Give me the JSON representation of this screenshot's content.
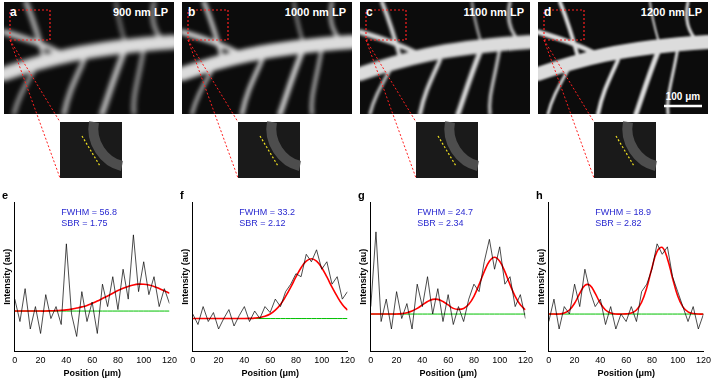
{
  "image_panels": [
    {
      "label": "a",
      "filter": "900 nm LP"
    },
    {
      "label": "b",
      "filter": "1000 nm LP"
    },
    {
      "label": "c",
      "filter": "1100 nm LP"
    },
    {
      "label": "d",
      "filter": "1200 nm LP",
      "scale_bar": "100 μm"
    }
  ],
  "chart_data": [
    {
      "type": "line",
      "label": "e",
      "annotations": [
        "FWHM = 56.8",
        "SBR = 1.75"
      ],
      "x_label": "Position (μm)",
      "y_label": "Intensity (au)",
      "x": [
        0,
        4,
        8,
        12,
        16,
        20,
        24,
        28,
        32,
        36,
        40,
        44,
        48,
        52,
        56,
        60,
        64,
        68,
        72,
        76,
        80,
        84,
        88,
        92,
        96,
        100,
        104,
        108,
        112,
        116,
        120
      ],
      "xlim": [
        0,
        120
      ],
      "xticks": [
        0,
        20,
        40,
        60,
        80,
        100,
        120
      ],
      "ylim": [
        0,
        1
      ],
      "tick_labels": "x",
      "grid": false,
      "series": [
        {
          "color": "#000000",
          "values": [
            0.35,
            0.2,
            0.42,
            0.15,
            0.3,
            0.12,
            0.38,
            0.22,
            0.3,
            0.18,
            0.72,
            0.25,
            0.1,
            0.4,
            0.2,
            0.33,
            0.12,
            0.45,
            0.3,
            0.5,
            0.28,
            0.55,
            0.35,
            0.78,
            0.4,
            0.6,
            0.38,
            0.5,
            0.3,
            0.42,
            0.32
          ]
        },
        {
          "color": "#ff0000",
          "values": [
            0.27,
            0.27,
            0.27,
            0.27,
            0.27,
            0.27,
            0.27,
            0.272,
            0.273,
            0.275,
            0.278,
            0.283,
            0.29,
            0.298,
            0.308,
            0.322,
            0.337,
            0.354,
            0.371,
            0.389,
            0.407,
            0.422,
            0.435,
            0.445,
            0.45,
            0.449,
            0.444,
            0.435,
            0.421,
            0.405,
            0.389
          ]
        },
        {
          "color": "#00c000",
          "values": [
            0.27,
            0.27,
            0.27,
            0.27,
            0.27,
            0.27,
            0.27,
            0.27,
            0.27,
            0.27,
            0.27,
            0.27,
            0.27,
            0.27,
            0.27,
            0.27,
            0.27,
            0.27,
            0.27,
            0.27,
            0.27,
            0.27,
            0.27,
            0.27,
            0.27,
            0.27,
            0.27,
            0.27,
            0.27,
            0.27,
            0.27
          ]
        }
      ]
    },
    {
      "type": "line",
      "label": "f",
      "annotations": [
        "FWHM = 33.2",
        "SBR = 2.12"
      ],
      "x_label": "Position (μm)",
      "y_label": "Intensity (au)",
      "x": [
        0,
        4,
        8,
        12,
        16,
        20,
        24,
        28,
        32,
        36,
        40,
        44,
        48,
        52,
        56,
        60,
        64,
        68,
        72,
        76,
        80,
        84,
        88,
        92,
        96,
        100,
        104,
        108,
        112,
        116,
        120
      ],
      "xlim": [
        0,
        120
      ],
      "xticks": [
        0,
        20,
        40,
        60,
        80,
        100,
        120
      ],
      "ylim": [
        0,
        1
      ],
      "tick_labels": "x",
      "grid": false,
      "series": [
        {
          "color": "#000000",
          "values": [
            0.25,
            0.18,
            0.3,
            0.2,
            0.26,
            0.15,
            0.22,
            0.28,
            0.17,
            0.24,
            0.3,
            0.2,
            0.27,
            0.22,
            0.3,
            0.26,
            0.35,
            0.3,
            0.4,
            0.45,
            0.52,
            0.5,
            0.65,
            0.6,
            0.68,
            0.55,
            0.6,
            0.45,
            0.5,
            0.35,
            0.4
          ]
        },
        {
          "color": "#ff0000",
          "values": [
            0.22,
            0.22,
            0.22,
            0.22,
            0.22,
            0.22,
            0.22,
            0.22,
            0.22,
            0.22,
            0.22,
            0.221,
            0.223,
            0.227,
            0.235,
            0.25,
            0.276,
            0.314,
            0.368,
            0.43,
            0.498,
            0.56,
            0.604,
            0.62,
            0.604,
            0.56,
            0.498,
            0.43,
            0.368,
            0.314,
            0.276
          ]
        },
        {
          "color": "#00c000",
          "values": [
            0.22,
            0.22,
            0.22,
            0.22,
            0.22,
            0.22,
            0.22,
            0.22,
            0.22,
            0.22,
            0.22,
            0.22,
            0.22,
            0.22,
            0.22,
            0.22,
            0.22,
            0.22,
            0.22,
            0.22,
            0.22,
            0.22,
            0.22,
            0.22,
            0.22,
            0.22,
            0.22,
            0.22,
            0.22,
            0.22,
            0.22
          ]
        }
      ]
    },
    {
      "type": "line",
      "label": "g",
      "annotations": [
        "FWHM = 24.7",
        "SBR = 2.34"
      ],
      "x_label": "Position (μm)",
      "y_label": "Intensity (au)",
      "x": [
        0,
        4,
        8,
        12,
        16,
        20,
        24,
        28,
        32,
        36,
        40,
        44,
        48,
        52,
        56,
        60,
        64,
        68,
        72,
        76,
        80,
        84,
        88,
        92,
        96,
        100,
        104,
        108,
        112,
        116,
        120
      ],
      "xlim": [
        0,
        120
      ],
      "xticks": [
        0,
        20,
        40,
        60,
        80,
        100,
        120
      ],
      "ylim": [
        0,
        1
      ],
      "tick_labels": "x",
      "grid": false,
      "series": [
        {
          "color": "#000000",
          "values": [
            0.3,
            0.8,
            0.2,
            0.35,
            0.15,
            0.4,
            0.22,
            0.32,
            0.15,
            0.45,
            0.3,
            0.5,
            0.25,
            0.42,
            0.2,
            0.38,
            0.18,
            0.3,
            0.2,
            0.35,
            0.45,
            0.4,
            0.6,
            0.75,
            0.55,
            0.7,
            0.45,
            0.5,
            0.3,
            0.38,
            0.22
          ]
        },
        {
          "color": "#ff0000",
          "values": [
            0.25,
            0.25,
            0.25,
            0.25,
            0.25,
            0.25,
            0.253,
            0.259,
            0.27,
            0.288,
            0.311,
            0.334,
            0.348,
            0.348,
            0.334,
            0.311,
            0.288,
            0.281,
            0.287,
            0.315,
            0.369,
            0.447,
            0.534,
            0.603,
            0.63,
            0.603,
            0.534,
            0.447,
            0.369,
            0.312,
            0.278
          ]
        },
        {
          "color": "#00c000",
          "values": [
            0.25,
            0.25,
            0.25,
            0.25,
            0.25,
            0.25,
            0.25,
            0.25,
            0.25,
            0.25,
            0.25,
            0.25,
            0.25,
            0.25,
            0.25,
            0.25,
            0.25,
            0.25,
            0.25,
            0.25,
            0.25,
            0.25,
            0.25,
            0.25,
            0.25,
            0.25,
            0.25,
            0.25,
            0.25,
            0.25,
            0.25
          ]
        }
      ]
    },
    {
      "type": "line",
      "label": "h",
      "annotations": [
        "FWHM = 18.9",
        "SBR = 2.82"
      ],
      "x_label": "Position (μm)",
      "y_label": "Intensity (au)",
      "x": [
        0,
        4,
        8,
        12,
        16,
        20,
        24,
        28,
        32,
        36,
        40,
        44,
        48,
        52,
        56,
        60,
        64,
        68,
        72,
        76,
        80,
        84,
        88,
        92,
        96,
        100,
        104,
        108,
        112,
        116,
        120
      ],
      "xlim": [
        0,
        120
      ],
      "xticks": [
        0,
        20,
        40,
        60,
        80,
        100,
        120
      ],
      "ylim": [
        0,
        1
      ],
      "tick_labels": "x",
      "grid": false,
      "series": [
        {
          "color": "#000000",
          "values": [
            0.2,
            0.35,
            0.15,
            0.3,
            0.25,
            0.45,
            0.3,
            0.55,
            0.4,
            0.3,
            0.35,
            0.18,
            0.3,
            0.15,
            0.25,
            0.2,
            0.3,
            0.2,
            0.4,
            0.45,
            0.55,
            0.72,
            0.65,
            0.7,
            0.5,
            0.4,
            0.3,
            0.2,
            0.3,
            0.15,
            0.25
          ]
        },
        {
          "color": "#ff0000",
          "values": [
            0.25,
            0.25,
            0.25,
            0.257,
            0.277,
            0.322,
            0.388,
            0.442,
            0.442,
            0.388,
            0.322,
            0.277,
            0.257,
            0.25,
            0.25,
            0.251,
            0.257,
            0.277,
            0.329,
            0.426,
            0.558,
            0.67,
            0.696,
            0.621,
            0.49,
            0.371,
            0.298,
            0.265,
            0.254,
            0.25,
            0.25
          ]
        },
        {
          "color": "#00c000",
          "values": [
            0.25,
            0.25,
            0.25,
            0.25,
            0.25,
            0.25,
            0.25,
            0.25,
            0.25,
            0.25,
            0.25,
            0.25,
            0.25,
            0.25,
            0.25,
            0.25,
            0.25,
            0.25,
            0.25,
            0.25,
            0.25,
            0.25,
            0.25,
            0.25,
            0.25,
            0.25,
            0.25,
            0.25,
            0.25,
            0.25,
            0.25
          ]
        }
      ]
    }
  ]
}
